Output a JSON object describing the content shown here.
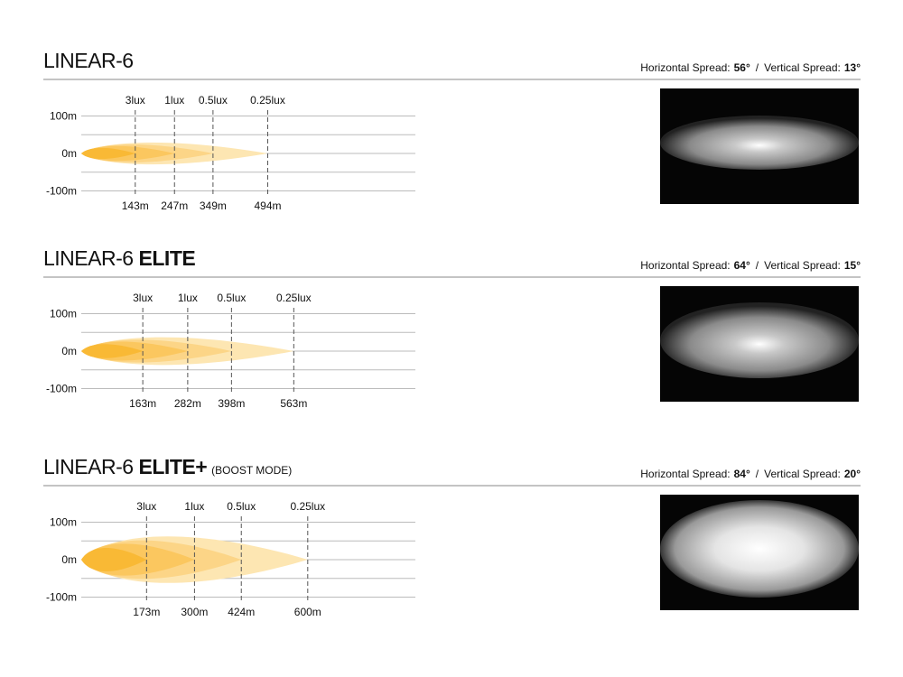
{
  "sections": [
    {
      "title": {
        "name": "LINEAR-6"
      },
      "spread": {
        "horizontal_label": "Horizontal Spread:",
        "horizontal": "56°",
        "separator": "/",
        "vertical_label": "Vertical Spread:",
        "vertical": "13°"
      },
      "yticks": [
        {
          "value": 100,
          "label": "100m"
        },
        {
          "value": 0,
          "label": "0m"
        },
        {
          "value": -100,
          "label": "-100m"
        }
      ],
      "lux": [
        "3lux",
        "1lux",
        "0.5lux",
        "0.25lux"
      ],
      "distances": [
        {
          "value": 143,
          "label": "143m"
        },
        {
          "value": 247,
          "label": "247m"
        },
        {
          "value": 349,
          "label": "349m"
        },
        {
          "value": 494,
          "label": "494m"
        }
      ]
    },
    {
      "title": {
        "name": "LINEAR-6",
        "variant": "ELITE"
      },
      "spread": {
        "horizontal_label": "Horizontal Spread:",
        "horizontal": "64°",
        "separator": "/",
        "vertical_label": "Vertical Spread:",
        "vertical": "15°"
      },
      "yticks": [
        {
          "value": 100,
          "label": "100m"
        },
        {
          "value": 0,
          "label": "0m"
        },
        {
          "value": -100,
          "label": "-100m"
        }
      ],
      "lux": [
        "3lux",
        "1lux",
        "0.5lux",
        "0.25lux"
      ],
      "distances": [
        {
          "value": 163,
          "label": "163m"
        },
        {
          "value": 282,
          "label": "282m"
        },
        {
          "value": 398,
          "label": "398m"
        },
        {
          "value": 563,
          "label": "563m"
        }
      ]
    },
    {
      "title": {
        "name": "LINEAR-6",
        "variant": "ELITE+",
        "note": "(BOOST MODE)"
      },
      "spread": {
        "horizontal_label": "Horizontal Spread:",
        "horizontal": "84°",
        "separator": "/",
        "vertical_label": "Vertical Spread:",
        "vertical": "20°"
      },
      "yticks": [
        {
          "value": 100,
          "label": "100m"
        },
        {
          "value": 0,
          "label": "0m"
        },
        {
          "value": -100,
          "label": "-100m"
        }
      ],
      "lux": [
        "3lux",
        "1lux",
        "0.5lux",
        "0.25lux"
      ],
      "distances": [
        {
          "value": 173,
          "label": "173m"
        },
        {
          "value": 300,
          "label": "300m"
        },
        {
          "value": 424,
          "label": "424m"
        },
        {
          "value": 600,
          "label": "600m"
        }
      ]
    }
  ]
}
